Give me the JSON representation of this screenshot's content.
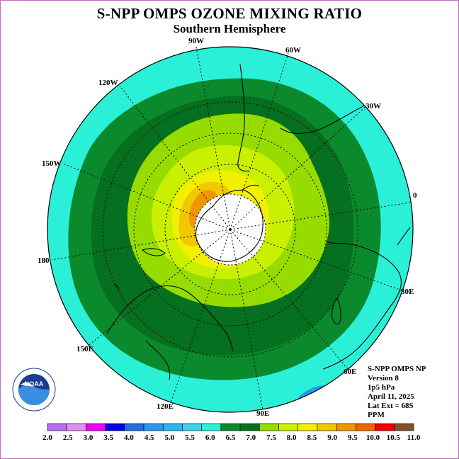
{
  "title": "S-NPP OMPS OZONE MIXING RATIO",
  "subtitle": "Southern Hemisphere",
  "longitude_labels": [
    "90W",
    "60W",
    "30W",
    "0",
    "30E",
    "60E",
    "90E",
    "120E",
    "150E",
    "180",
    "150W",
    "120W"
  ],
  "info": {
    "line1": "S-NPP OMPS NP",
    "line2": "Version 8",
    "line3": "1p5 hPa",
    "line4": "April 11, 2025",
    "line5": "Lat Ext = 68S",
    "line6": "PPM"
  },
  "logo": {
    "text": "NOAA",
    "ring_text": "NATIONAL OCEANIC AND ATMOSPHERIC ADMINISTRATION · U.S. DEPARTMENT OF COMMERCE"
  },
  "colorbar": {
    "ticks": [
      "2.0",
      "2.5",
      "3.0",
      "3.5",
      "4.0",
      "4.5",
      "5.0",
      "5.5",
      "6.0",
      "6.5",
      "7.0",
      "7.5",
      "8.0",
      "8.5",
      "9.0",
      "9.5",
      "10.0",
      "10.5",
      "11.0"
    ],
    "colors": [
      "#b070f0",
      "#e090f0",
      "#f000f0",
      "#0000e0",
      "#1e6ee8",
      "#2896f0",
      "#28b4f0",
      "#3cd4f0",
      "#2af0d8",
      "#0a8a2c",
      "#057020",
      "#96dc00",
      "#c8f000",
      "#f0f000",
      "#f0c800",
      "#f09600",
      "#f06400",
      "#f00000",
      "#805030"
    ]
  },
  "map_colors": {
    "outer_cyan": "#2af0d8",
    "band_6_5": "#0a8a2c",
    "band_7_0": "#057020",
    "band_7_5": "#96dc00",
    "band_8_0": "#c8f000",
    "band_8_5": "#f0f000",
    "band_9_0": "#f0c800",
    "band_9_5": "#f09600",
    "pole_gap": "#ffffff",
    "low_blue": "#2896f0"
  }
}
